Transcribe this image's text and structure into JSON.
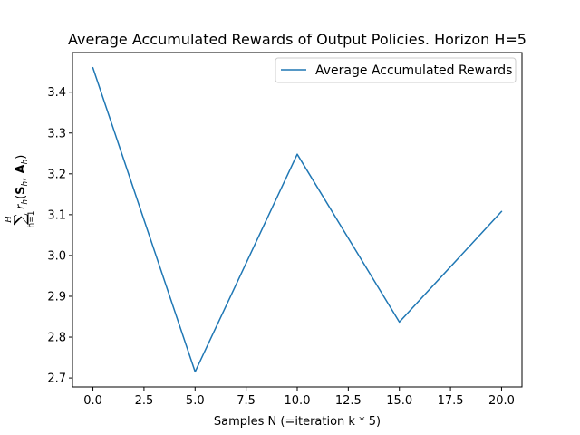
{
  "chart_data": {
    "type": "line",
    "title": "Average Accumulated Rewards of Output Policies. Horizon H=5",
    "xlabel": "Samples N (=iteration k * 5)",
    "ylabel": "Σ_{h=1}^{H} r_h(S_h, A_h)",
    "x": [
      0,
      5,
      10,
      15,
      20
    ],
    "series": [
      {
        "name": "Average Accumulated Rewards",
        "color": "#1f77b4",
        "values": [
          3.46,
          2.715,
          3.248,
          2.837,
          3.108
        ]
      }
    ],
    "xlim": [
      -1,
      21
    ],
    "ylim": [
      2.678,
      3.497
    ],
    "xticks": [
      0,
      2.5,
      5,
      7.5,
      10,
      12.5,
      15,
      17.5,
      20
    ],
    "xtick_labels": [
      "0.0",
      "2.5",
      "5.0",
      "7.5",
      "10.0",
      "12.5",
      "15.0",
      "17.5",
      "20.0"
    ],
    "yticks": [
      2.7,
      2.8,
      2.9,
      3.0,
      3.1,
      3.2,
      3.3,
      3.4
    ],
    "ytick_labels": [
      "2.7",
      "2.8",
      "2.9",
      "3.0",
      "3.1",
      "3.2",
      "3.3",
      "3.4"
    ],
    "grid": false,
    "legend": "top-right"
  }
}
